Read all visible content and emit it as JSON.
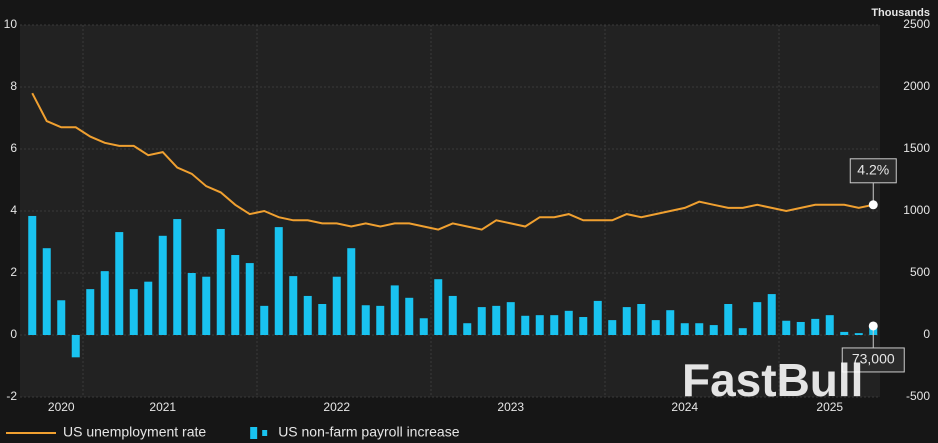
{
  "chart_data": {
    "type": "combo",
    "y2_label": "Thousands",
    "watermark": "FastBull",
    "categories": [
      null,
      null,
      "2020",
      null,
      null,
      null,
      null,
      null,
      null,
      "2021",
      null,
      null,
      null,
      null,
      null,
      null,
      null,
      null,
      null,
      null,
      null,
      "2022",
      null,
      null,
      null,
      null,
      null,
      null,
      null,
      null,
      null,
      null,
      null,
      "2023",
      null,
      null,
      null,
      null,
      null,
      null,
      null,
      null,
      null,
      null,
      null,
      "2024",
      null,
      null,
      null,
      null,
      null,
      null,
      null,
      null,
      null,
      "2025",
      null,
      null,
      null
    ],
    "ylim": [
      -2,
      10
    ],
    "yticks": [
      -2,
      0,
      2,
      4,
      6,
      8,
      10
    ],
    "y2lim": [
      -500,
      2500
    ],
    "y2ticks": [
      -500,
      0,
      500,
      1000,
      1500,
      2000,
      2500
    ],
    "grid": true,
    "legend": "bottom-left",
    "series": [
      {
        "name": "US unemployment rate",
        "type": "line",
        "color": "#f0a030",
        "values": [
          7.8,
          6.9,
          6.7,
          6.7,
          6.4,
          6.2,
          6.1,
          6.1,
          5.8,
          5.9,
          5.4,
          5.2,
          4.8,
          4.6,
          4.2,
          3.9,
          4.0,
          3.8,
          3.7,
          3.7,
          3.6,
          3.6,
          3.5,
          3.6,
          3.5,
          3.6,
          3.6,
          3.5,
          3.4,
          3.6,
          3.5,
          3.4,
          3.7,
          3.6,
          3.5,
          3.8,
          3.8,
          3.9,
          3.7,
          3.7,
          3.7,
          3.9,
          3.8,
          3.9,
          4.0,
          4.1,
          4.3,
          4.2,
          4.1,
          4.1,
          4.2,
          4.1,
          4.0,
          4.1,
          4.2,
          4.2,
          4.2,
          4.1,
          4.2
        ],
        "value_labels": [
          null,
          null,
          null,
          null,
          null,
          null,
          null,
          null,
          null,
          null,
          null,
          null,
          null,
          null,
          null,
          null,
          null,
          null,
          null,
          null,
          null,
          null,
          null,
          null,
          null,
          null,
          null,
          null,
          null,
          null,
          null,
          null,
          null,
          null,
          null,
          null,
          null,
          null,
          null,
          null,
          null,
          null,
          null,
          null,
          null,
          null,
          null,
          null,
          null,
          null,
          null,
          null,
          null,
          null,
          null,
          null,
          null,
          null,
          "4.2%"
        ]
      },
      {
        "name": "US non-farm payroll increase",
        "type": "bar",
        "axis": "y2",
        "color": "#19c3f0",
        "values": [
          960,
          700,
          280,
          -180,
          370,
          515,
          830,
          370,
          430,
          800,
          935,
          500,
          470,
          855,
          645,
          580,
          235,
          870,
          475,
          315,
          250,
          470,
          700,
          240,
          235,
          400,
          300,
          135,
          450,
          315,
          95,
          225,
          235,
          265,
          155,
          160,
          160,
          195,
          145,
          275,
          120,
          225,
          250,
          120,
          200,
          95,
          95,
          80,
          250,
          55,
          265,
          330,
          115,
          105,
          130,
          160,
          25,
          15,
          73
        ],
        "value_labels": [
          null,
          null,
          null,
          null,
          null,
          null,
          null,
          null,
          null,
          null,
          null,
          null,
          null,
          null,
          null,
          null,
          null,
          null,
          null,
          null,
          null,
          null,
          null,
          null,
          null,
          null,
          null,
          null,
          null,
          null,
          null,
          null,
          null,
          null,
          null,
          null,
          null,
          null,
          null,
          null,
          null,
          null,
          null,
          null,
          null,
          null,
          null,
          null,
          null,
          null,
          null,
          null,
          null,
          null,
          null,
          null,
          null,
          null,
          "73,000"
        ]
      }
    ]
  }
}
